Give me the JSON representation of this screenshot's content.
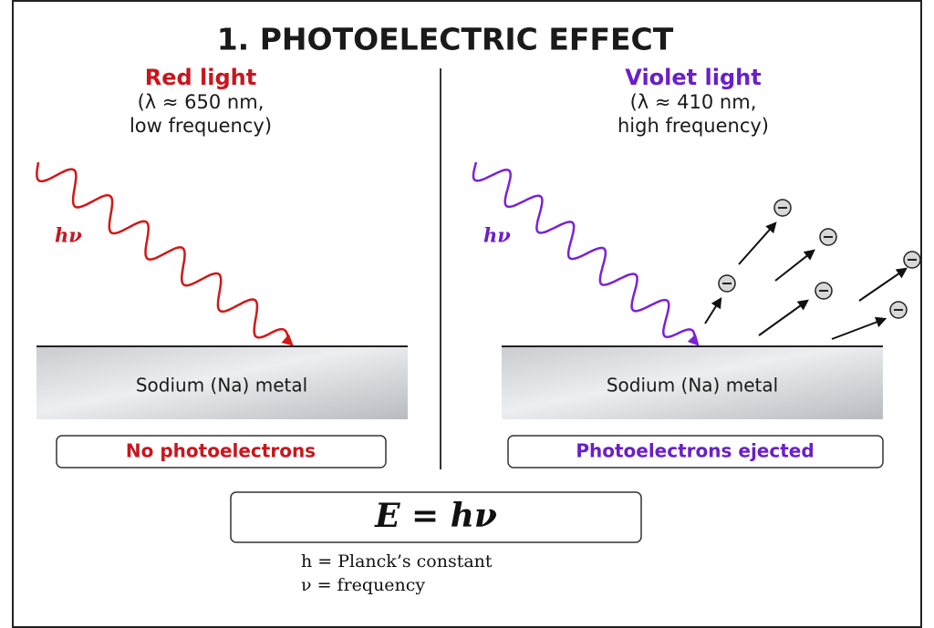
{
  "title": "1. PHOTOELECTRIC EFFECT",
  "left": {
    "heading": "Red light",
    "detail": [
      "(λ ≈ 650 nm,",
      "low frequency)"
    ],
    "photon_label": "hν",
    "metal": "Sodium (Na) metal",
    "result": "No photoelectrons"
  },
  "right": {
    "heading": "Violet light",
    "detail": [
      "(λ ≈ 410 nm,",
      "high frequency)"
    ],
    "photon_label": "hν",
    "metal": "Sodium (Na) metal",
    "result": "Photoelectrons ejected"
  },
  "equation": "E = hν",
  "legend": [
    "h = Planck’s constant",
    "ν = frequency"
  ]
}
